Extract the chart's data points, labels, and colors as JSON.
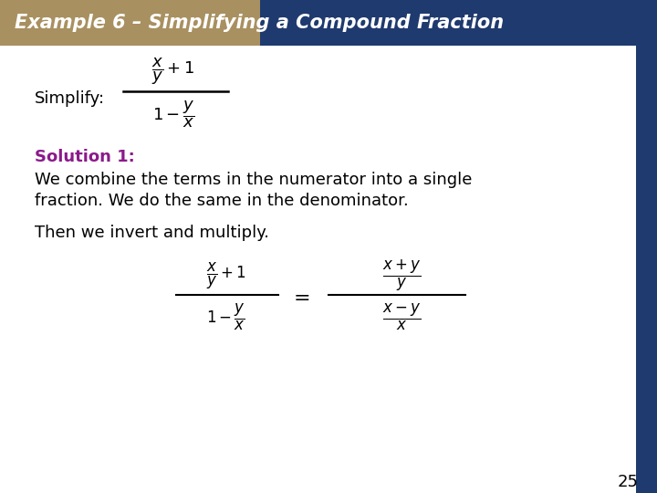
{
  "title": "Example 6 – Simplifying a Compound Fraction",
  "title_bg_left": "#A89060",
  "title_bg_right": "#1F3A6E",
  "title_text_color": "#FFFFFF",
  "slide_bg": "#FFFFFF",
  "right_bar_color": "#1F3A6E",
  "solution_color": "#8B1A8B",
  "body_text_color": "#000000",
  "simplify_label": "Simplify:",
  "solution_line1": "Solution 1:",
  "solution_line2": "We combine the terms in the numerator into a single",
  "solution_line3": "fraction. We do the same in the denominator.",
  "then_line": "Then we invert and multiply.",
  "page_number": "25"
}
